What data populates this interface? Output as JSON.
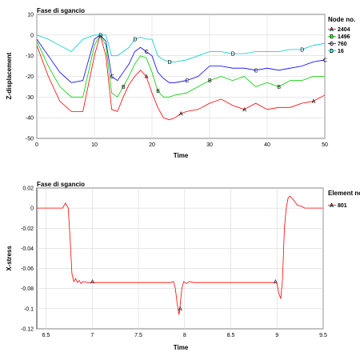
{
  "chart_data": [
    {
      "type": "line",
      "title": "Fase di sgancio",
      "xlabel": "Time",
      "ylabel": "Z-displacement",
      "xlim": [
        0,
        50
      ],
      "ylim": [
        -50,
        10
      ],
      "xticks": [
        "0",
        "10",
        "20",
        "30",
        "40",
        "50"
      ],
      "yticks": [
        "10",
        "0",
        "-10",
        "-20",
        "-30",
        "-40",
        "-50"
      ],
      "grid": true,
      "legend_title": "Node no.",
      "legend_position": "right",
      "series": [
        {
          "name": "2404",
          "marker": "A",
          "color": "#ff0000",
          "x": [
            0,
            2,
            4,
            6,
            8,
            10,
            11,
            12,
            13,
            14,
            15,
            16,
            17,
            18,
            19,
            20,
            21,
            22,
            23,
            24,
            25,
            26,
            28,
            30,
            32,
            34,
            36,
            38,
            40,
            42,
            44,
            46,
            48,
            50
          ],
          "values": [
            -5,
            -20,
            -32,
            -37,
            -37,
            -10,
            0,
            -10,
            -36,
            -37,
            -30,
            -24,
            -20,
            -17,
            -20,
            -28,
            -35,
            -40,
            -41,
            -40,
            -38,
            -37,
            -36,
            -33,
            -31,
            -34,
            -36,
            -33,
            -36,
            -35,
            -35,
            -33,
            -32,
            -29
          ]
        },
        {
          "name": "1496",
          "marker": "B",
          "color": "#00cc00",
          "x": [
            0,
            2,
            4,
            6,
            8,
            10,
            11,
            12,
            13,
            14,
            15,
            16,
            17,
            18,
            19,
            20,
            21,
            22,
            23,
            24,
            26,
            28,
            30,
            32,
            34,
            36,
            38,
            40,
            42,
            44,
            46,
            48,
            50
          ],
          "values": [
            -3,
            -15,
            -25,
            -30,
            -30,
            -5,
            0,
            -5,
            -28,
            -30,
            -25,
            -20,
            -14,
            -10,
            -11,
            -18,
            -27,
            -30,
            -30,
            -29,
            -28,
            -25,
            -22,
            -20,
            -22,
            -20,
            -25,
            -23,
            -25,
            -22,
            -22,
            -20,
            -20
          ]
        },
        {
          "name": "760",
          "marker": "C",
          "color": "#0000ff",
          "x": [
            0,
            2,
            4,
            6,
            8,
            10,
            11,
            12,
            13,
            14,
            15,
            16,
            17,
            18,
            19,
            20,
            21,
            22,
            23,
            24,
            26,
            28,
            30,
            32,
            34,
            36,
            38,
            40,
            42,
            44,
            46,
            48,
            50
          ],
          "values": [
            -2,
            -10,
            -18,
            -23,
            -22,
            -2,
            0,
            -3,
            -20,
            -22,
            -18,
            -14,
            -8,
            -6,
            -8,
            -10,
            -18,
            -21,
            -23,
            -23,
            -22,
            -20,
            -15,
            -15,
            -16,
            -16,
            -17,
            -16,
            -17,
            -16,
            -15,
            -13,
            -12
          ]
        },
        {
          "name": "16",
          "marker": "D",
          "color": "#00cccc",
          "x": [
            0,
            2,
            4,
            6,
            8,
            10,
            11,
            12,
            13,
            14,
            15,
            16,
            17,
            18,
            19,
            20,
            21,
            22,
            23,
            24,
            26,
            28,
            30,
            32,
            34,
            36,
            38,
            40,
            42,
            44,
            46,
            48,
            50
          ],
          "values": [
            0,
            -2,
            -5,
            -8,
            -2,
            0,
            0,
            0,
            -10,
            -10,
            -8,
            -6,
            -2,
            -1,
            -2,
            -2,
            -10,
            -12,
            -13,
            -13,
            -12,
            -10,
            -8,
            -8,
            -9,
            -9,
            -8,
            -8,
            -8,
            -7,
            -7,
            -5,
            -4
          ]
        }
      ]
    },
    {
      "type": "line",
      "title": "Fase di sgancio",
      "xlabel": "Time",
      "ylabel": "X-stress",
      "xlim": [
        6.4,
        9.5
      ],
      "ylim": [
        -0.12,
        0.02
      ],
      "xticks": [
        "6.5",
        "7",
        "7.5",
        "8",
        "8.5",
        "9",
        "9.5"
      ],
      "yticks": [
        "0.02",
        "0",
        "-0.02",
        "-0.04",
        "-0.06",
        "-0.08",
        "-0.1",
        "-0.12"
      ],
      "grid": true,
      "legend_title": "Element no.",
      "legend_position": "right",
      "series": [
        {
          "name": "801",
          "marker": "A",
          "color": "#ff0000",
          "x": [
            6.4,
            6.68,
            6.71,
            6.74,
            6.76,
            6.78,
            6.8,
            6.82,
            6.84,
            6.86,
            6.88,
            6.9,
            6.95,
            7.0,
            7.3,
            7.6,
            7.85,
            7.88,
            7.9,
            7.92,
            7.94,
            7.95,
            7.97,
            7.99,
            8.02,
            8.05,
            8.1,
            8.5,
            8.98,
            9.0,
            9.02,
            9.04,
            9.06,
            9.08,
            9.1,
            9.12,
            9.14,
            9.18,
            9.22,
            9.26,
            9.3,
            9.35,
            9.5
          ],
          "values": [
            0.0,
            0.0,
            0.005,
            0.0,
            -0.03,
            -0.065,
            -0.073,
            -0.07,
            -0.074,
            -0.072,
            -0.075,
            -0.073,
            -0.074,
            -0.074,
            -0.074,
            -0.074,
            -0.074,
            -0.073,
            -0.08,
            -0.095,
            -0.106,
            -0.098,
            -0.08,
            -0.073,
            -0.075,
            -0.073,
            -0.074,
            -0.074,
            -0.074,
            -0.075,
            -0.085,
            -0.09,
            -0.07,
            -0.02,
            0.0,
            0.01,
            0.012,
            0.008,
            0.003,
            0.002,
            0.0,
            0.0,
            0.0
          ]
        }
      ]
    }
  ]
}
